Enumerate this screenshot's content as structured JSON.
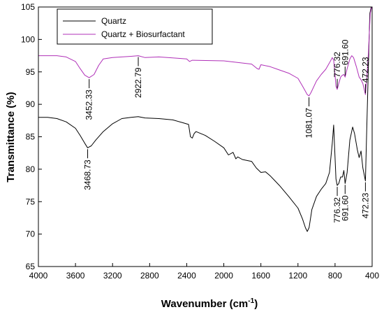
{
  "chart_data": {
    "type": "line",
    "xlabel": "Wavenumber (cm",
    "xlabel_sup": "-1",
    "xlabel_end": ")",
    "ylabel": "Transmittance (%)",
    "xlim": [
      4000,
      400
    ],
    "x_reversed": true,
    "ylim": [
      65,
      105
    ],
    "xticks": [
      4000,
      3600,
      3200,
      2800,
      2400,
      2000,
      1600,
      1200,
      800,
      400
    ],
    "yticks": [
      65,
      70,
      75,
      80,
      85,
      90,
      95,
      100,
      105
    ],
    "grid": false,
    "legend_position": "top-left",
    "series": [
      {
        "name": "Quartz",
        "color": "#000000",
        "points": [
          [
            4000,
            88.0
          ],
          [
            3900,
            88.0
          ],
          [
            3800,
            87.8
          ],
          [
            3700,
            87.3
          ],
          [
            3600,
            86.3
          ],
          [
            3550,
            85.2
          ],
          [
            3500,
            84.0
          ],
          [
            3468.73,
            83.3
          ],
          [
            3430,
            83.6
          ],
          [
            3380,
            84.5
          ],
          [
            3300,
            85.8
          ],
          [
            3200,
            87.0
          ],
          [
            3100,
            87.8
          ],
          [
            3000,
            88.0
          ],
          [
            2922.79,
            88.1
          ],
          [
            2850,
            87.9
          ],
          [
            2700,
            87.8
          ],
          [
            2550,
            87.6
          ],
          [
            2450,
            87.2
          ],
          [
            2380,
            86.9
          ],
          [
            2360,
            85.0
          ],
          [
            2340,
            84.8
          ],
          [
            2320,
            85.5
          ],
          [
            2300,
            85.8
          ],
          [
            2200,
            85.2
          ],
          [
            2100,
            84.3
          ],
          [
            2000,
            83.3
          ],
          [
            1950,
            82.2
          ],
          [
            1900,
            82.6
          ],
          [
            1870,
            81.6
          ],
          [
            1850,
            81.9
          ],
          [
            1800,
            81.5
          ],
          [
            1700,
            81.2
          ],
          [
            1650,
            80.2
          ],
          [
            1600,
            79.5
          ],
          [
            1550,
            79.6
          ],
          [
            1500,
            79.0
          ],
          [
            1400,
            77.5
          ],
          [
            1300,
            75.8
          ],
          [
            1200,
            74.0
          ],
          [
            1150,
            72.3
          ],
          [
            1120,
            71.0
          ],
          [
            1100,
            70.4
          ],
          [
            1080,
            71.0
          ],
          [
            1050,
            73.8
          ],
          [
            1000,
            75.8
          ],
          [
            950,
            76.9
          ],
          [
            900,
            77.8
          ],
          [
            860,
            79.5
          ],
          [
            830,
            84.0
          ],
          [
            815,
            86.8
          ],
          [
            805,
            83.5
          ],
          [
            790,
            78.5
          ],
          [
            776.32,
            77.5
          ],
          [
            760,
            77.8
          ],
          [
            740,
            78.8
          ],
          [
            720,
            78.8
          ],
          [
            705,
            79.8
          ],
          [
            691.6,
            77.8
          ],
          [
            670,
            79.5
          ],
          [
            640,
            84.5
          ],
          [
            610,
            86.5
          ],
          [
            590,
            85.5
          ],
          [
            560,
            83.0
          ],
          [
            540,
            81.8
          ],
          [
            520,
            82.8
          ],
          [
            500,
            80.2
          ],
          [
            472.23,
            78.2
          ],
          [
            460,
            85.0
          ],
          [
            440,
            96.0
          ],
          [
            425,
            104.0
          ],
          [
            410,
            105.0
          ]
        ]
      },
      {
        "name": "Quartz + Biosurfactant",
        "color": "#b030b8",
        "points": [
          [
            4000,
            97.5
          ],
          [
            3800,
            97.5
          ],
          [
            3700,
            97.3
          ],
          [
            3600,
            96.6
          ],
          [
            3550,
            95.5
          ],
          [
            3500,
            94.5
          ],
          [
            3452.33,
            94.1
          ],
          [
            3400,
            94.6
          ],
          [
            3350,
            96.0
          ],
          [
            3300,
            97.0
          ],
          [
            3200,
            97.2
          ],
          [
            3000,
            97.4
          ],
          [
            2922.79,
            97.5
          ],
          [
            2850,
            97.2
          ],
          [
            2700,
            97.3
          ],
          [
            2500,
            97.1
          ],
          [
            2400,
            97.0
          ],
          [
            2370,
            96.6
          ],
          [
            2340,
            96.8
          ],
          [
            2000,
            96.7
          ],
          [
            1700,
            96.2
          ],
          [
            1640,
            95.5
          ],
          [
            1620,
            95.4
          ],
          [
            1600,
            96.1
          ],
          [
            1500,
            95.8
          ],
          [
            1400,
            95.3
          ],
          [
            1300,
            94.8
          ],
          [
            1200,
            94.0
          ],
          [
            1150,
            92.8
          ],
          [
            1100,
            91.5
          ],
          [
            1081.07,
            91.3
          ],
          [
            1060,
            91.8
          ],
          [
            1000,
            93.6
          ],
          [
            950,
            94.6
          ],
          [
            900,
            95.4
          ],
          [
            860,
            96.4
          ],
          [
            830,
            97.2
          ],
          [
            815,
            96.8
          ],
          [
            800,
            94.5
          ],
          [
            790,
            92.8
          ],
          [
            776.32,
            92.3
          ],
          [
            760,
            93.2
          ],
          [
            740,
            94.2
          ],
          [
            720,
            94.5
          ],
          [
            705,
            94.6
          ],
          [
            691.6,
            94.2
          ],
          [
            670,
            95.5
          ],
          [
            640,
            97.0
          ],
          [
            620,
            97.5
          ],
          [
            600,
            97.2
          ],
          [
            570,
            95.8
          ],
          [
            540,
            94.2
          ],
          [
            520,
            93.8
          ],
          [
            500,
            93.2
          ],
          [
            472.23,
            91.5
          ],
          [
            460,
            93.5
          ],
          [
            440,
            98.0
          ],
          [
            420,
            104.0
          ],
          [
            405,
            105.0
          ]
        ]
      }
    ],
    "annotations": [
      {
        "label": "3452.33",
        "x": 3452.33,
        "y": 94.1,
        "series": 1,
        "dir": "down",
        "color": "#b030b8"
      },
      {
        "label": "2922.79",
        "x": 2922.79,
        "y": 97.5,
        "series": 1,
        "dir": "down",
        "color": "#b030b8"
      },
      {
        "label": "1081.07",
        "x": 1081.07,
        "y": 91.3,
        "series": 1,
        "dir": "down",
        "color": "#b030b8"
      },
      {
        "label": "776.32",
        "x": 776.32,
        "y": 92.3,
        "series": 1,
        "dir": "up",
        "color": "#b030b8"
      },
      {
        "label": "691.60",
        "x": 691.6,
        "y": 94.2,
        "series": 1,
        "dir": "up",
        "color": "#b030b8"
      },
      {
        "label": "472.23",
        "x": 472.23,
        "y": 91.5,
        "series": 1,
        "dir": "up",
        "color": "#b030b8"
      },
      {
        "label": "3468.73",
        "x": 3468.73,
        "y": 83.3,
        "series": 0,
        "dir": "down",
        "color": "#000000"
      },
      {
        "label": "776.32",
        "x": 776.32,
        "y": 77.5,
        "series": 0,
        "dir": "down",
        "color": "#000000"
      },
      {
        "label": "691.60",
        "x": 691.6,
        "y": 77.8,
        "series": 0,
        "dir": "down",
        "color": "#000000"
      },
      {
        "label": "472.23",
        "x": 472.23,
        "y": 78.2,
        "series": 0,
        "dir": "down",
        "color": "#000000"
      }
    ]
  }
}
